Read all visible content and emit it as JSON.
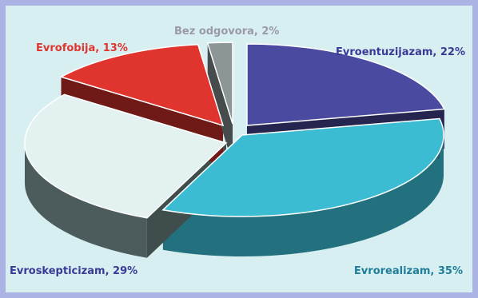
{
  "chart_data": {
    "type": "pie",
    "title": "",
    "slices": [
      {
        "label": "Evroentuzijazam, 22%",
        "value": 22,
        "color": "#4a4aa0"
      },
      {
        "label": "Evrorealizam, 35%",
        "value": 35,
        "color": "#3bbcd2"
      },
      {
        "label": "Evroskepticizam, 29%",
        "value": 29,
        "color": "#e4f1f1"
      },
      {
        "label": "Evrofobija, 13%",
        "value": 13,
        "color": "#e0342f"
      },
      {
        "label": "Bez odgovora, 2%",
        "value": 2,
        "color": "#8c9696"
      }
    ],
    "label_colors": [
      "#3a3a96",
      "#1f7e9c",
      "#3a3a96",
      "#e0342f",
      "#9a9aa6"
    ]
  }
}
